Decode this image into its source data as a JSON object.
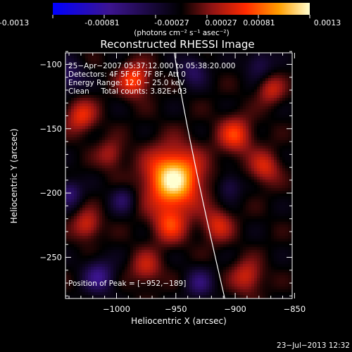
{
  "colorbar": {
    "ticks": [
      "-0.0013",
      "-0.00081",
      "-0.00027",
      "0.00027",
      "0.00081",
      "0.0013"
    ],
    "unit_label": "(photons cm⁻² s⁻¹ asec⁻²)",
    "range": [
      -0.0013,
      0.0013
    ]
  },
  "chart_data": {
    "type": "heatmap",
    "title": "Reconstructed RHESSI Image",
    "xlabel": "Heliocentric X (arcsec)",
    "ylabel": "Heliocentric Y (arcsec)",
    "xlim": [
      -1043,
      -852
    ],
    "ylim": [
      -282,
      -91
    ],
    "x_ticks": [
      -1000,
      -950,
      -900,
      -850
    ],
    "x_tick_labels": [
      "−1000",
      "−950",
      "−900",
      "−850"
    ],
    "y_ticks": [
      -250,
      -200,
      -150,
      -100
    ],
    "y_tick_labels": [
      "−250",
      "−200",
      "−150",
      "−100"
    ],
    "peak": {
      "x": -952,
      "y": -189
    },
    "colormap": [
      "#0000ff",
      "#3c1490",
      "#000000",
      "#901414",
      "#ff2a00",
      "#ff9e00",
      "#ffffd0"
    ],
    "limb_color": "#ffffff",
    "info_lines": [
      "25−Apr−2007 05:37:12.000 to 05:38:20.000",
      "Detectors: 4F 5F 6F 7F 8F, Att 0",
      "Energy Range: 12.0 − 25.0 keV",
      "Clean     Total counts: 3.82E+03"
    ],
    "peak_label": "Position of Peak = [−952,−189]"
  },
  "timestamp": "23−Jul−2013 12:32"
}
